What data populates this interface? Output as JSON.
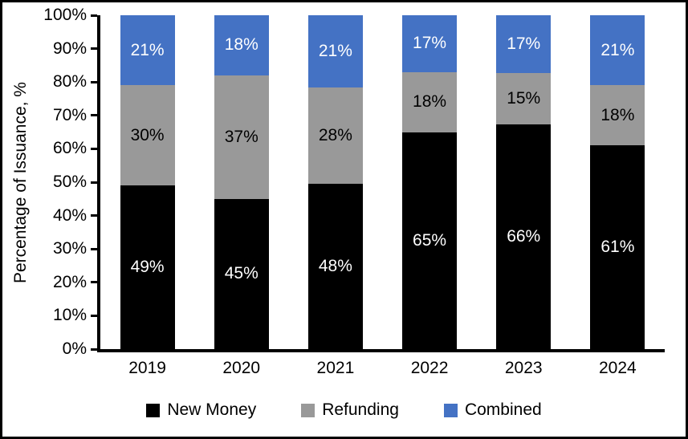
{
  "chart_data": {
    "type": "bar",
    "stacked": true,
    "title": "",
    "ylabel": "Percentage of Issuance, %",
    "xlabel": "",
    "categories": [
      "2019",
      "2020",
      "2021",
      "2022",
      "2023",
      "2024"
    ],
    "series": [
      {
        "name": "New Money",
        "color": "#000000",
        "label_color": "#ffffff",
        "values": [
          49,
          45,
          48,
          65,
          66,
          61
        ]
      },
      {
        "name": "Refunding",
        "color": "#999999",
        "label_color": "#000000",
        "values": [
          30,
          37,
          28,
          18,
          15,
          18
        ]
      },
      {
        "name": "Combined",
        "color": "#4472c4",
        "label_color": "#ffffff",
        "values": [
          21,
          18,
          21,
          17,
          17,
          21
        ]
      }
    ],
    "value_suffix": "%",
    "y_ticks": [
      "0%",
      "10%",
      "20%",
      "30%",
      "40%",
      "50%",
      "60%",
      "70%",
      "80%",
      "90%",
      "100%"
    ],
    "ylim": [
      0,
      100
    ],
    "grid": false,
    "legend_position": "bottom",
    "axis_color": "#000000"
  }
}
